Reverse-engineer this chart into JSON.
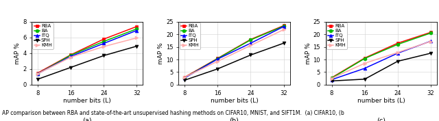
{
  "x": [
    8,
    16,
    24,
    32
  ],
  "subplot_a": {
    "title": "(a)",
    "ylabel": "mAP %",
    "xlabel": "number bits (L)",
    "ylim": [
      0,
      8
    ],
    "yticks": [
      0,
      2,
      4,
      6,
      8
    ],
    "series": {
      "RBA": [
        1.5,
        3.8,
        5.8,
        7.4
      ],
      "BA": [
        1.4,
        3.75,
        5.5,
        7.1
      ],
      "ITQ": [
        1.4,
        3.6,
        5.25,
        6.9
      ],
      "SPH": [
        0.7,
        2.2,
        3.7,
        4.9
      ],
      "KMH": [
        1.4,
        3.5,
        4.85,
        5.95
      ]
    }
  },
  "subplot_b": {
    "title": "(b)",
    "ylabel": "mAP %",
    "xlabel": "number bits (L)",
    "ylim": [
      0,
      25
    ],
    "yticks": [
      0,
      5,
      10,
      15,
      20,
      25
    ],
    "series": {
      "RBA": [
        3.0,
        10.5,
        18.0,
        23.5
      ],
      "BA": [
        2.8,
        10.4,
        17.8,
        23.3
      ],
      "ITQ": [
        2.7,
        10.2,
        16.5,
        23.1
      ],
      "SPH": [
        1.8,
        6.3,
        11.8,
        16.5
      ],
      "KMH": [
        3.0,
        9.3,
        15.6,
        21.9
      ]
    }
  },
  "subplot_c": {
    "title": "(c)",
    "ylabel": "mAP %",
    "xlabel": "number bits (L)",
    "ylim": [
      0,
      25
    ],
    "yticks": [
      0,
      5,
      10,
      15,
      20,
      25
    ],
    "series": {
      "RBA": [
        2.8,
        10.6,
        16.5,
        20.8
      ],
      "BA": [
        2.6,
        10.4,
        16.0,
        20.5
      ],
      "ITQ": [
        2.0,
        6.5,
        12.5,
        17.3
      ],
      "SPH": [
        1.5,
        2.2,
        9.3,
        12.5
      ],
      "KMH": [
        2.5,
        8.5,
        12.8,
        17.2
      ]
    }
  },
  "colors": {
    "RBA": "#ff0000",
    "BA": "#00bb00",
    "ITQ": "#0000ff",
    "SPH": "#000000",
    "KMH": "#ffaaaa"
  },
  "markers": {
    "RBA": "s",
    "BA": "o",
    "ITQ": "^",
    "SPH": "v",
    "KMH": ">"
  },
  "caption": "AP comparison between RBA and state-of-the-art unsupervised hashing methods on CIFAR10, MNIST, and SIFT1M.  (a) CIFAR10, (b"
}
